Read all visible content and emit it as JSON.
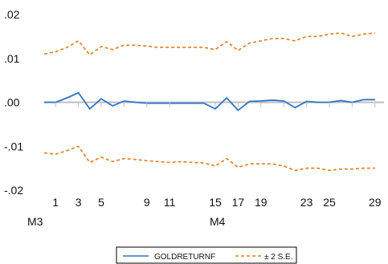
{
  "chart_data": {
    "type": "line",
    "title": "",
    "xlabel": "",
    "ylabel": "",
    "ylim": [
      -0.02,
      0.02
    ],
    "yticks": [
      {
        "value": 0.02,
        "label": ".02"
      },
      {
        "value": 0.01,
        "label": ".01"
      },
      {
        "value": 0.0,
        "label": ".00"
      },
      {
        "value": -0.01,
        "label": "-.01"
      },
      {
        "value": -0.02,
        "label": "-.02"
      }
    ],
    "x": [
      0,
      1,
      2,
      3,
      4,
      5,
      6,
      7,
      8,
      9,
      10,
      11,
      12,
      13,
      14,
      15,
      16,
      17,
      18,
      19,
      20,
      21,
      22,
      23,
      24,
      25,
      26,
      27,
      28,
      29
    ],
    "xticks": [
      1,
      3,
      5,
      7,
      9,
      11,
      15,
      17,
      19,
      21,
      23,
      25,
      27,
      29
    ],
    "xtick_labels": [
      "1",
      "3",
      "5",
      "9",
      "11",
      "15",
      "17",
      "19",
      "23",
      "25",
      "29"
    ],
    "xtick_label_positions": [
      1,
      3,
      5,
      9,
      11,
      15,
      17,
      19,
      23,
      25,
      29
    ],
    "group_labels": [
      {
        "label": "M3",
        "x": 0
      },
      {
        "label": "M4",
        "x": 15
      }
    ],
    "zero_line": true,
    "legend_position": "bottom",
    "series": [
      {
        "name": "GOLDRETURNF",
        "color": "#2e75c8",
        "style": "solid",
        "values": [
          0.0,
          0.0,
          0.001,
          0.0022,
          -0.0015,
          0.0008,
          -0.0008,
          0.0003,
          0.0,
          -0.0002,
          -0.0002,
          -0.0002,
          -0.0002,
          -0.0002,
          -0.0002,
          -0.0015,
          0.001,
          -0.0018,
          0.0002,
          0.0003,
          0.0005,
          0.0003,
          -0.0012,
          0.0002,
          0.0,
          0.0,
          0.0004,
          0.0,
          0.0006,
          0.0006
        ]
      },
      {
        "name": "± 2 S.E.",
        "color": "#e07d1f",
        "style": "dashed",
        "band": true,
        "upper": [
          0.011,
          0.0115,
          0.0125,
          0.014,
          0.0108,
          0.0127,
          0.012,
          0.013,
          0.013,
          0.0128,
          0.0125,
          0.0125,
          0.0125,
          0.0125,
          0.0125,
          0.012,
          0.0138,
          0.0118,
          0.0135,
          0.014,
          0.0145,
          0.0145,
          0.014,
          0.015,
          0.015,
          0.0155,
          0.0158,
          0.015,
          0.0155,
          0.0158
        ],
        "lower": [
          -0.0115,
          -0.0118,
          -0.011,
          -0.01,
          -0.0137,
          -0.0125,
          -0.0135,
          -0.0128,
          -0.013,
          -0.0133,
          -0.0135,
          -0.0137,
          -0.0135,
          -0.0137,
          -0.0138,
          -0.0145,
          -0.0128,
          -0.0148,
          -0.014,
          -0.014,
          -0.014,
          -0.0145,
          -0.0155,
          -0.015,
          -0.015,
          -0.0155,
          -0.0152,
          -0.0152,
          -0.015,
          -0.015
        ]
      }
    ]
  }
}
